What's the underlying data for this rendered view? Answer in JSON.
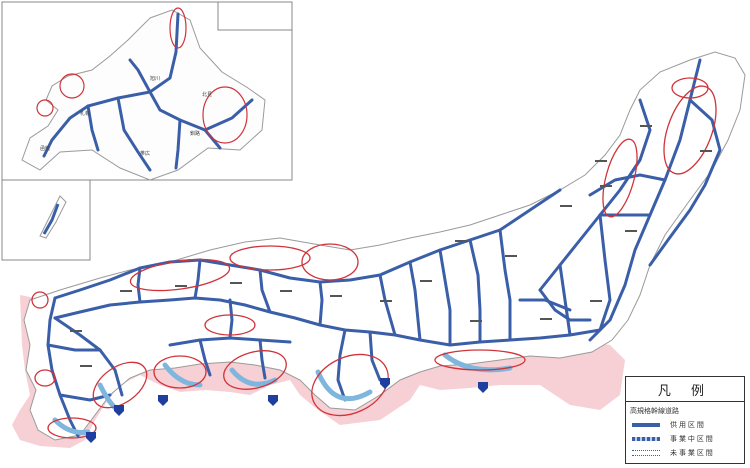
{
  "legend": {
    "title": "凡 例",
    "subtitle": "高規格幹線道路",
    "items": [
      {
        "label": "供 用 区 間",
        "style": "open"
      },
      {
        "label": "事 業 中 区 間",
        "style": "wip"
      },
      {
        "label": "未 事 業 区 間",
        "style": "plan"
      }
    ]
  },
  "colors": {
    "road": "#3a5fa8",
    "road_wip": "#7fb6dd",
    "highlight_circle": "#d0333a",
    "coast_shade": "#f4c8cc",
    "land_outline": "#9a9a9a",
    "route_shield": "#1f3fa0"
  }
}
